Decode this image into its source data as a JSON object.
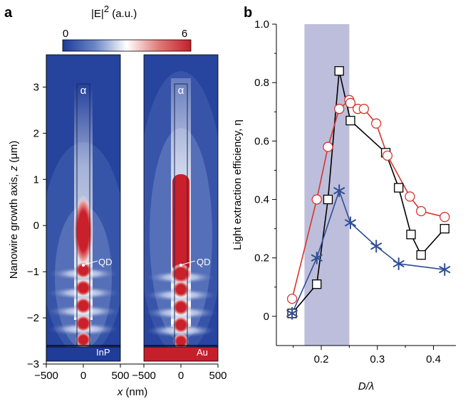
{
  "panel_a": {
    "label": "a",
    "colorbar": {
      "title_main": "|E|",
      "title_sup": "2",
      "title_unit": " (a.u.)",
      "min_label": "0",
      "max_label": "6"
    },
    "ylabel_prefix": "Nanowire growth axis, ",
    "ylabel_var": "z",
    "ylabel_unit": " (μm)",
    "xlabel_var": "x",
    "xlabel_unit": " (nm)",
    "yticks": [
      "3",
      "2",
      "1",
      "0",
      "−1",
      "−2",
      "−3"
    ],
    "xticks_left": [
      "−500",
      "0",
      "500"
    ],
    "xticks_right": [
      "−500",
      "0",
      "500"
    ],
    "left_map": {
      "top_mark": "α",
      "qd_label": "QD",
      "substrate_label": "InP"
    },
    "right_map": {
      "top_mark": "α",
      "qd_label": "QD",
      "substrate_label": "Au"
    }
  },
  "panel_b": {
    "label": "b"
  },
  "chart_data": [
    {
      "type": "heatmap",
      "x_axis": {
        "label": "x (nm)",
        "range": [
          -500,
          500
        ],
        "ticks": [
          -500,
          0,
          500
        ]
      },
      "y_axis": {
        "label": "Nanowire growth axis, z (μm)",
        "range": [
          -3,
          3.7
        ],
        "ticks": [
          3,
          2,
          1,
          0,
          -1,
          -2,
          -3
        ]
      },
      "colorbar": {
        "label": "|E|^2 (a.u.)",
        "range": [
          0,
          6
        ],
        "colors": [
          "#1f3d9a",
          "#ffffff",
          "#c8202c"
        ]
      },
      "maps": [
        {
          "substrate": "InP",
          "qd_z": -0.78,
          "hotspot_z": [
            -2.35,
            -1.95,
            -1.55,
            -1.15,
            -0.78
          ],
          "upper_glow_z": [
            -0.7,
            0.4
          ]
        },
        {
          "substrate": "Au",
          "qd_z": -0.78,
          "hotspot_z": [
            -2.4,
            -1.95,
            -1.55,
            -1.15
          ],
          "upper_glow_z": [
            -0.95,
            1.7
          ]
        }
      ]
    },
    {
      "type": "line",
      "xlabel": "D/λ",
      "ylabel": "Light extraction efficiency, η",
      "xlim": [
        0.12,
        0.44
      ],
      "ylim": [
        -0.1,
        1.0
      ],
      "xticks": [
        0.2,
        0.3,
        0.4
      ],
      "yticks": [
        0,
        0.2,
        0.4,
        0.6,
        0.8,
        1.0
      ],
      "shaded_region": {
        "x": [
          0.17,
          0.25
        ],
        "color": "#b9bbd9"
      },
      "series": [
        {
          "marker": "open-square",
          "color": "#000000",
          "x": [
            0.148,
            0.192,
            0.212,
            0.232,
            0.252,
            0.315,
            0.338,
            0.36,
            0.378,
            0.42
          ],
          "y": [
            0.01,
            0.11,
            0.4,
            0.84,
            0.67,
            0.56,
            0.44,
            0.28,
            0.21,
            0.3
          ]
        },
        {
          "marker": "open-circle",
          "color": "#d6352f",
          "x": [
            0.148,
            0.192,
            0.212,
            0.232,
            0.25,
            0.252,
            0.265,
            0.276,
            0.298,
            0.318,
            0.358,
            0.378,
            0.42
          ],
          "y": [
            0.06,
            0.4,
            0.58,
            0.71,
            0.74,
            0.73,
            0.71,
            0.71,
            0.66,
            0.55,
            0.41,
            0.36,
            0.34
          ]
        },
        {
          "marker": "asterisk",
          "color": "#2f4e97",
          "x": [
            0.148,
            0.192,
            0.232,
            0.252,
            0.298,
            0.338,
            0.42
          ],
          "y": [
            0.01,
            0.2,
            0.43,
            0.32,
            0.24,
            0.18,
            0.16
          ]
        }
      ]
    }
  ]
}
